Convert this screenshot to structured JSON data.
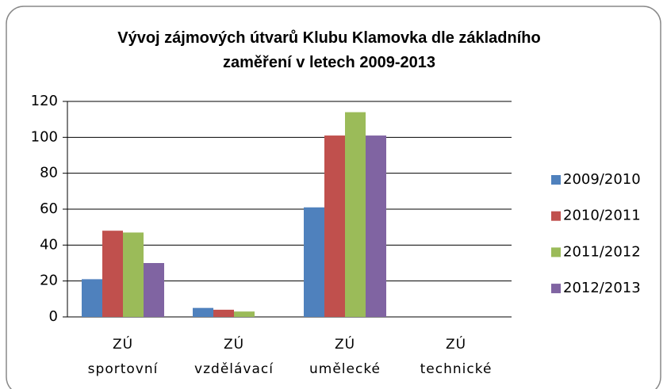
{
  "chart_data": {
    "type": "bar",
    "title": "Vývoj zájmových útvarů Klubu Klamovka dle základního zaměření v letech 2009-2013",
    "categories": [
      "ZÚ sportovní",
      "ZÚ vzdělávací",
      "ZÚ umělecké",
      "ZÚ technické"
    ],
    "series": [
      {
        "name": "2009/2010",
        "color": "#4f81bd",
        "values": [
          21,
          5,
          61,
          0
        ]
      },
      {
        "name": "2010/2011",
        "color": "#c0504d",
        "values": [
          48,
          4,
          101,
          0
        ]
      },
      {
        "name": "2011/2012",
        "color": "#9bbb59",
        "values": [
          47,
          3,
          114,
          0
        ]
      },
      {
        "name": "2012/2013",
        "color": "#8064a2",
        "values": [
          30,
          0,
          101,
          0
        ]
      }
    ],
    "ylim": [
      0,
      120
    ],
    "yticks": [
      0,
      20,
      40,
      60,
      80,
      100,
      120
    ],
    "grid": true,
    "legend": "right"
  }
}
